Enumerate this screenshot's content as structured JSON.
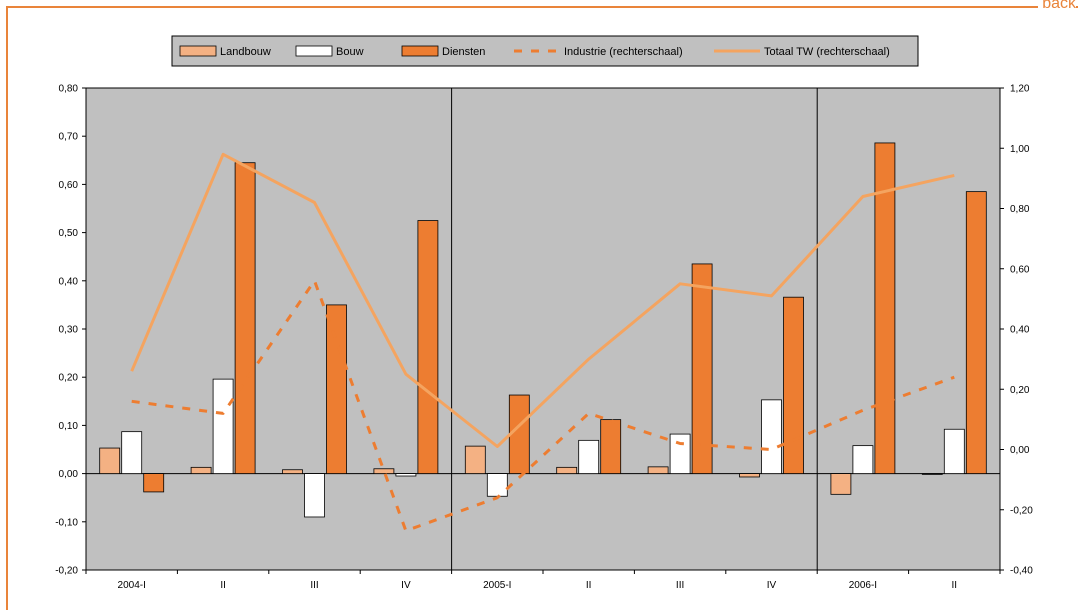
{
  "corner_text": "back",
  "chart_data": {
    "type": "bar",
    "categories": [
      "2004-I",
      "II",
      "III",
      "IV",
      "2005-I",
      "II",
      "III",
      "IV",
      "2006-I",
      "II"
    ],
    "ylim": [
      -0.2,
      0.8
    ],
    "y2lim": [
      -0.4,
      1.2
    ],
    "yticks": [
      "-0,20",
      "-0,10",
      "0,00",
      "0,10",
      "0,20",
      "0,30",
      "0,40",
      "0,50",
      "0,60",
      "0,70",
      "0,80"
    ],
    "y2ticks": [
      "-0,40",
      "-0,20",
      "0,00",
      "0,20",
      "0,40",
      "0,60",
      "0,80",
      "1,00",
      "1,20"
    ],
    "legend_position": "top",
    "plot_background": "#c0c0c0",
    "year_separators_after": [
      4,
      8
    ],
    "series": [
      {
        "name": "Landbouw",
        "type": "bar",
        "axis": "left",
        "color": "#f4b183",
        "values": [
          0.053,
          0.013,
          0.008,
          0.01,
          0.057,
          0.013,
          0.014,
          -0.007,
          -0.043,
          0.0
        ]
      },
      {
        "name": "Bouw",
        "type": "bar",
        "axis": "left",
        "color": "#ffffff",
        "values": [
          0.087,
          0.196,
          -0.09,
          -0.005,
          -0.047,
          0.069,
          0.082,
          0.153,
          0.058,
          0.092
        ]
      },
      {
        "name": "Diensten",
        "type": "bar",
        "axis": "left",
        "color": "#ed7d31",
        "values": [
          -0.038,
          0.645,
          0.35,
          0.525,
          0.163,
          0.112,
          0.435,
          0.366,
          0.686,
          0.585
        ]
      },
      {
        "name": "Industrie (rechterschaal)",
        "type": "line",
        "dash": true,
        "axis": "right",
        "color": "#ed7d31",
        "values": [
          0.16,
          0.12,
          0.56,
          -0.27,
          -0.16,
          0.12,
          0.02,
          0.0,
          0.13,
          0.24
        ]
      },
      {
        "name": "Totaal TW (rechterschaal)",
        "type": "line",
        "dash": false,
        "axis": "right",
        "color": "#f4a460",
        "values": [
          0.26,
          0.98,
          0.82,
          0.25,
          0.01,
          0.3,
          0.55,
          0.51,
          0.84,
          0.91
        ]
      }
    ]
  }
}
